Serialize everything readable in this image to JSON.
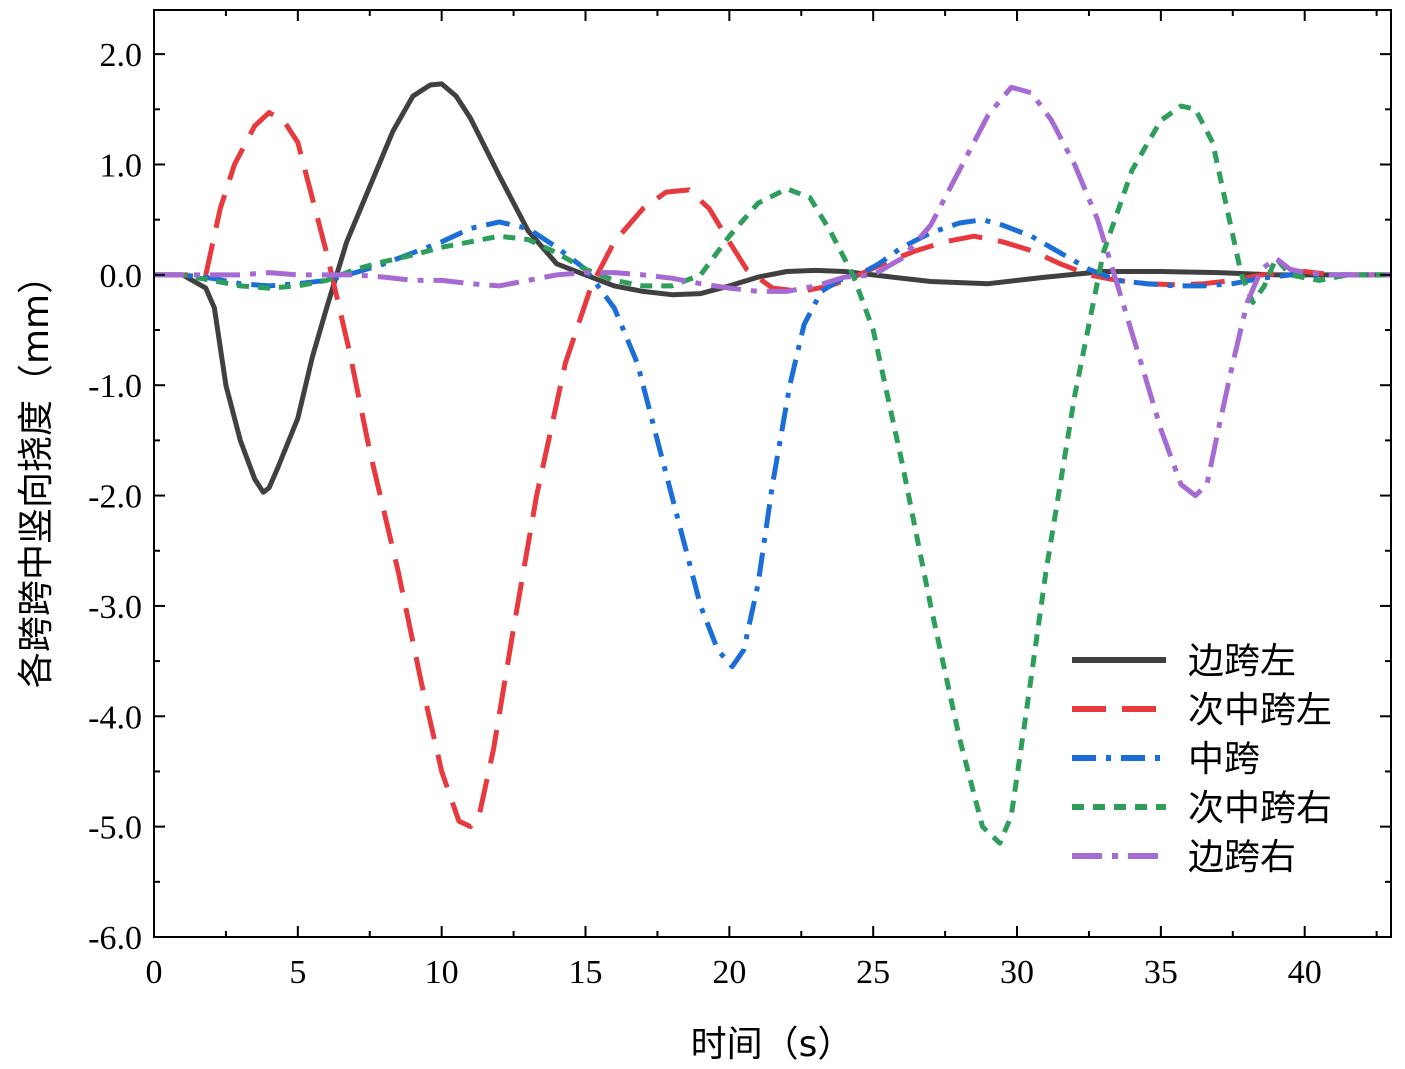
{
  "chart_data": {
    "type": "line",
    "title": "",
    "xlabel": "时间（s）",
    "ylabel": "各跨跨中竖向挠度（mm）",
    "xlim": [
      0,
      43
    ],
    "ylim": [
      -6.0,
      2.4
    ],
    "x_ticks": [
      0,
      5,
      10,
      15,
      20,
      25,
      30,
      35,
      40
    ],
    "x_tick_labels": [
      "0",
      "5",
      "10",
      "15",
      "20",
      "25",
      "30",
      "35",
      "40"
    ],
    "y_ticks": [
      2.0,
      1.0,
      0.0,
      -1.0,
      -2.0,
      -3.0,
      -4.0,
      -5.0,
      -6.0
    ],
    "y_tick_labels": [
      "2.0",
      "1.0",
      "0.0",
      "-1.0",
      "-2.0",
      "-3.0",
      "-4.0",
      "-5.0",
      "-6.0"
    ],
    "grid": false,
    "legend_position": "bottom-right",
    "series": [
      {
        "name": "边跨左",
        "color": "#404040",
        "dash": "solid",
        "x": [
          0,
          1.0,
          1.8,
          2.1,
          2.5,
          3.0,
          3.5,
          3.8,
          4.0,
          4.3,
          5.0,
          5.5,
          6.0,
          6.7,
          7.5,
          8.3,
          9.0,
          9.6,
          10.0,
          10.5,
          11.0,
          12.0,
          13.0,
          14.0,
          15.0,
          16.0,
          17.0,
          18.0,
          19.0,
          20.0,
          21.0,
          22.0,
          23.0,
          24.0,
          25.0,
          27.0,
          29.0,
          31.0,
          33.0,
          35.0,
          37.0,
          39.0,
          41.0,
          43.0
        ],
        "y": [
          0,
          0,
          -0.12,
          -0.3,
          -1.0,
          -1.5,
          -1.85,
          -1.97,
          -1.93,
          -1.75,
          -1.3,
          -0.75,
          -0.3,
          0.3,
          0.8,
          1.3,
          1.62,
          1.72,
          1.73,
          1.62,
          1.42,
          0.9,
          0.4,
          0.1,
          0.0,
          -0.1,
          -0.15,
          -0.18,
          -0.17,
          -0.1,
          -0.02,
          0.03,
          0.04,
          0.03,
          0.0,
          -0.06,
          -0.08,
          -0.02,
          0.03,
          0.03,
          0.02,
          0.0,
          0.0,
          0.0
        ]
      },
      {
        "name": "次中跨左",
        "color": "#e8393f",
        "dash": "long-dash",
        "x": [
          0,
          1.0,
          1.8,
          2.3,
          2.8,
          3.5,
          4.0,
          4.5,
          5.0,
          5.5,
          6.0,
          6.8,
          7.5,
          8.5,
          9.3,
          10.0,
          10.6,
          11.0,
          11.3,
          11.8,
          12.5,
          13.3,
          14.3,
          15.2,
          16.0,
          17.0,
          17.8,
          18.6,
          19.3,
          20.0,
          20.6,
          21.5,
          22.5,
          23.5,
          24.5,
          25.5,
          26.5,
          27.5,
          28.5,
          29.5,
          30.5,
          31.5,
          32.5,
          33.5,
          34.5,
          35.5,
          36.5,
          37.5,
          38.5,
          40.0,
          41.0,
          43.0
        ],
        "y": [
          0,
          0,
          0,
          0.6,
          1.0,
          1.35,
          1.47,
          1.4,
          1.2,
          0.7,
          0.2,
          -0.7,
          -1.6,
          -2.7,
          -3.7,
          -4.5,
          -4.95,
          -5.0,
          -4.9,
          -4.3,
          -3.2,
          -2.0,
          -0.8,
          -0.1,
          0.3,
          0.6,
          0.75,
          0.77,
          0.6,
          0.3,
          0.05,
          -0.12,
          -0.15,
          -0.1,
          0.0,
          0.12,
          0.22,
          0.3,
          0.35,
          0.3,
          0.22,
          0.1,
          0.0,
          -0.05,
          -0.08,
          -0.09,
          -0.08,
          -0.05,
          0.0,
          0.03,
          0.0,
          0.0
        ]
      },
      {
        "name": "中跨",
        "color": "#1b6ed8",
        "dash": "dash-dot",
        "x": [
          0,
          1.0,
          2.0,
          3.0,
          4.0,
          5.0,
          6.0,
          7.0,
          8.0,
          9.0,
          10.0,
          11.0,
          12.0,
          13.0,
          14.0,
          15.0,
          16.0,
          16.8,
          17.5,
          18.3,
          19.0,
          19.6,
          20.1,
          20.5,
          21.0,
          21.5,
          22.1,
          22.6,
          23.2,
          23.8,
          24.5,
          25.2,
          26.0,
          27.0,
          28.0,
          28.8,
          29.5,
          30.5,
          31.5,
          32.5,
          33.5,
          34.5,
          35.5,
          36.5,
          37.5,
          38.5,
          39.5,
          41.0,
          43.0
        ],
        "y": [
          0,
          0,
          -0.03,
          -0.08,
          -0.1,
          -0.08,
          -0.05,
          0.02,
          0.1,
          0.2,
          0.3,
          0.42,
          0.48,
          0.42,
          0.25,
          0.05,
          -0.3,
          -0.8,
          -1.5,
          -2.3,
          -3.0,
          -3.4,
          -3.55,
          -3.4,
          -2.8,
          -1.9,
          -1.0,
          -0.45,
          -0.15,
          -0.05,
          0.0,
          0.1,
          0.25,
          0.38,
          0.47,
          0.5,
          0.45,
          0.35,
          0.2,
          0.05,
          -0.05,
          -0.08,
          -0.1,
          -0.1,
          -0.08,
          -0.03,
          0.0,
          0.0,
          0.0
        ]
      },
      {
        "name": "次中跨右",
        "color": "#2e9e5b",
        "dash": "short-dash",
        "x": [
          0,
          1.0,
          2.0,
          3.0,
          4.0,
          5.0,
          6.0,
          7.0,
          8.0,
          9.0,
          10.0,
          11.0,
          12.0,
          13.0,
          14.0,
          15.0,
          16.0,
          17.0,
          18.0,
          19.0,
          20.0,
          21.0,
          22.0,
          22.8,
          23.5,
          24.3,
          25.0,
          26.0,
          27.0,
          28.0,
          28.8,
          29.4,
          29.8,
          30.3,
          31.0,
          32.0,
          33.0,
          34.0,
          35.0,
          35.7,
          36.2,
          36.8,
          37.3,
          37.8,
          38.2,
          38.6,
          39.0,
          39.5,
          40.5,
          41.5,
          43.0
        ],
        "y": [
          0,
          0,
          -0.05,
          -0.1,
          -0.12,
          -0.1,
          -0.05,
          0.05,
          0.12,
          0.18,
          0.25,
          0.3,
          0.35,
          0.32,
          0.2,
          0.05,
          -0.05,
          -0.1,
          -0.1,
          0.0,
          0.35,
          0.65,
          0.78,
          0.7,
          0.4,
          0.0,
          -0.5,
          -1.7,
          -3.0,
          -4.2,
          -5.0,
          -5.15,
          -4.9,
          -4.0,
          -2.7,
          -1.1,
          0.2,
          0.95,
          1.4,
          1.53,
          1.5,
          1.2,
          0.6,
          0.0,
          -0.25,
          -0.1,
          0.15,
          0.0,
          -0.05,
          0.0,
          0.0
        ]
      },
      {
        "name": "边跨右",
        "color": "#a66bd3",
        "dash": "long-dash-dot",
        "x": [
          0,
          1.0,
          2.0,
          3.0,
          4.0,
          5.0,
          6.0,
          7.0,
          8.0,
          9.0,
          10.0,
          11.0,
          12.0,
          13.0,
          14.0,
          15.0,
          16.0,
          17.0,
          18.0,
          19.0,
          20.0,
          21.0,
          22.0,
          23.0,
          24.0,
          25.0,
          26.0,
          27.0,
          28.0,
          29.0,
          29.8,
          30.5,
          31.2,
          32.0,
          32.8,
          33.5,
          34.2,
          35.0,
          35.7,
          36.2,
          36.6,
          37.0,
          37.5,
          38.0,
          38.5,
          39.0,
          39.5,
          40.0,
          41.0,
          43.0
        ],
        "y": [
          0,
          0,
          0,
          0,
          0.02,
          0.0,
          0.0,
          0.0,
          -0.02,
          -0.05,
          -0.05,
          -0.08,
          -0.1,
          -0.05,
          0.0,
          0.02,
          0.02,
          0.0,
          -0.03,
          -0.08,
          -0.12,
          -0.15,
          -0.15,
          -0.1,
          -0.02,
          0.0,
          0.15,
          0.45,
          0.95,
          1.45,
          1.7,
          1.65,
          1.4,
          1.0,
          0.5,
          -0.1,
          -0.7,
          -1.4,
          -1.9,
          -2.0,
          -1.9,
          -1.4,
          -0.8,
          -0.25,
          0.05,
          0.15,
          0.05,
          0.02,
          0.0,
          0.0
        ]
      }
    ]
  }
}
